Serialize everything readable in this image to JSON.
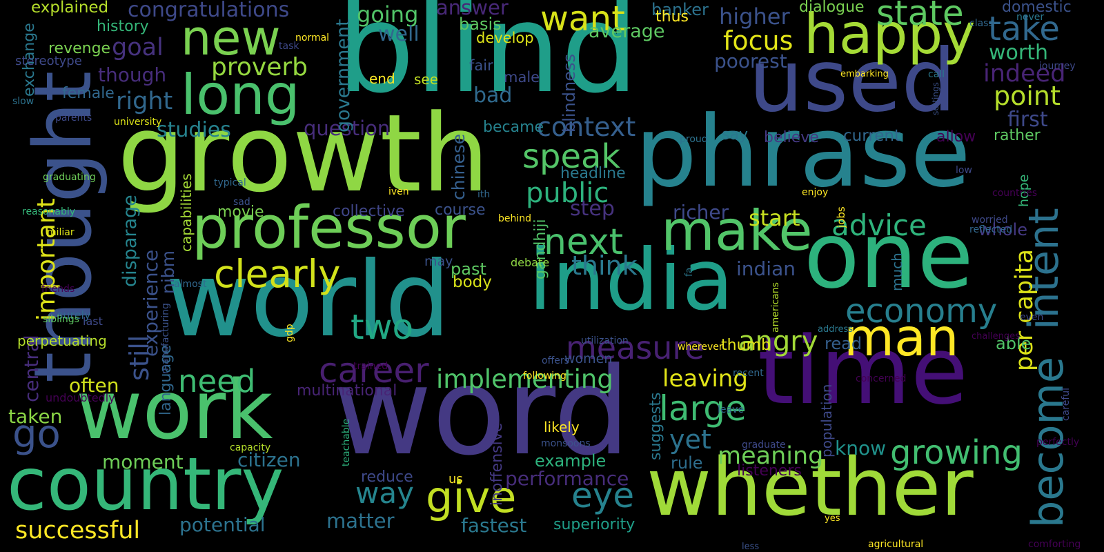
{
  "palette": {
    "background": "#000000",
    "viridis": [
      "#440154",
      "#482878",
      "#3e4989",
      "#31688e",
      "#26828e",
      "#1f9e89",
      "#35b779",
      "#6ece58",
      "#b5de2b",
      "#fde725"
    ]
  },
  "words": [
    {
      "text": "blind",
      "color": "#1f9e89"
    },
    {
      "text": "growth",
      "color": "#8fd744"
    },
    {
      "text": "world",
      "color": "#21918c"
    },
    {
      "text": "word",
      "color": "#443983"
    },
    {
      "text": "india",
      "color": "#1f9e89"
    },
    {
      "text": "one",
      "color": "#2db27d"
    },
    {
      "text": "phrase",
      "color": "#26828e"
    },
    {
      "text": "used",
      "color": "#3e4989"
    },
    {
      "text": "time",
      "color": "#440f76"
    },
    {
      "text": "work",
      "color": "#4ac16d"
    },
    {
      "text": "country",
      "color": "#35b779"
    },
    {
      "text": "whether",
      "color": "#a0da39"
    },
    {
      "text": "thought",
      "color": "#3b528b"
    },
    {
      "text": "professor",
      "color": "#6ece58"
    },
    {
      "text": "man",
      "color": "#fde725"
    },
    {
      "text": "happy",
      "color": "#a5db36"
    },
    {
      "text": "long",
      "color": "#4ac16d"
    },
    {
      "text": "new",
      "color": "#7ad151"
    },
    {
      "text": "make",
      "color": "#52c569"
    },
    {
      "text": "become",
      "color": "#2a788e"
    },
    {
      "text": "intent",
      "color": "#2c728e"
    },
    {
      "text": "clearly",
      "color": "#d2e21b"
    },
    {
      "text": "go",
      "color": "#3b528b"
    },
    {
      "text": "give",
      "color": "#c2df23"
    },
    {
      "text": "state",
      "color": "#5ec962"
    },
    {
      "text": "want",
      "color": "#d8e219"
    },
    {
      "text": "take",
      "color": "#31688e"
    },
    {
      "text": "next",
      "color": "#4ac16d"
    },
    {
      "text": "two",
      "color": "#22a884"
    },
    {
      "text": "economy",
      "color": "#277f8e"
    },
    {
      "text": "large",
      "color": "#3fbc73"
    },
    {
      "text": "career",
      "color": "#481f70"
    },
    {
      "text": "growing",
      "color": "#42be71"
    },
    {
      "text": "need",
      "color": "#3fbc73"
    },
    {
      "text": "eye",
      "color": "#26828e"
    },
    {
      "text": "measure",
      "color": "#482173"
    },
    {
      "text": "implementing",
      "color": "#50c46a"
    },
    {
      "text": "speak",
      "color": "#54c568"
    },
    {
      "text": "advice",
      "color": "#2fb47c"
    },
    {
      "text": "context",
      "color": "#355f8d"
    },
    {
      "text": "think",
      "color": "#2a788e"
    },
    {
      "text": "public",
      "color": "#2db27d"
    },
    {
      "text": "angry",
      "color": "#a2da37"
    },
    {
      "text": "way",
      "color": "#25858e"
    },
    {
      "text": "successful",
      "color": "#fde725"
    },
    {
      "text": "important",
      "color": "#dde318"
    },
    {
      "text": "proverb",
      "color": "#95d840"
    },
    {
      "text": "focus",
      "color": "#e2e418"
    },
    {
      "text": "point",
      "color": "#b5de2b"
    },
    {
      "text": "indeed",
      "color": "#482475"
    },
    {
      "text": "per capita",
      "color": "#dde318"
    },
    {
      "text": "meaning",
      "color": "#6ece58"
    },
    {
      "text": "leaving",
      "color": "#e2e418"
    },
    {
      "text": "still",
      "color": "#3b528b"
    },
    {
      "text": "yet",
      "color": "#2c728e"
    },
    {
      "text": "first",
      "color": "#3e4989"
    },
    {
      "text": "worth",
      "color": "#35b779"
    },
    {
      "text": "goal",
      "color": "#46327e"
    },
    {
      "text": "right",
      "color": "#31688e"
    },
    {
      "text": "going",
      "color": "#52c569"
    },
    {
      "text": "answer",
      "color": "#482878"
    },
    {
      "text": "higher",
      "color": "#3b528b"
    },
    {
      "text": "start",
      "color": "#c8e020"
    },
    {
      "text": "congratulations",
      "color": "#3e4989"
    },
    {
      "text": "well",
      "color": "#31688e"
    },
    {
      "text": "studies",
      "color": "#26828e"
    },
    {
      "text": "though",
      "color": "#472d7b"
    },
    {
      "text": "question",
      "color": "#472d7b"
    },
    {
      "text": "experience",
      "color": "#3b528b"
    },
    {
      "text": "disparage",
      "color": "#25848e"
    },
    {
      "text": "central",
      "color": "#472d7b"
    },
    {
      "text": "often",
      "color": "#d0e11c"
    },
    {
      "text": "taken",
      "color": "#8bd646"
    },
    {
      "text": "moment",
      "color": "#6ece58"
    },
    {
      "text": "matter",
      "color": "#2c728e"
    },
    {
      "text": "citizen",
      "color": "#2c728e"
    },
    {
      "text": "performance",
      "color": "#472d7b"
    },
    {
      "text": "potential",
      "color": "#2c728e"
    },
    {
      "text": "fastest",
      "color": "#2a788e"
    },
    {
      "text": "superiority",
      "color": "#1f9e89"
    },
    {
      "text": "past",
      "color": "#5ec962"
    },
    {
      "text": "body",
      "color": "#d8e219"
    },
    {
      "text": "step",
      "color": "#46327e"
    },
    {
      "text": "richer",
      "color": "#3e4989"
    },
    {
      "text": "bad",
      "color": "#306a8e"
    },
    {
      "text": "poorest",
      "color": "#3b528b"
    },
    {
      "text": "banker",
      "color": "#2c728e"
    },
    {
      "text": "average",
      "color": "#5ec962"
    },
    {
      "text": "dialogue",
      "color": "#7ad151"
    },
    {
      "text": "domestic",
      "color": "#3b528b"
    },
    {
      "text": "indian",
      "color": "#3b528b"
    },
    {
      "text": "know",
      "color": "#20928c"
    },
    {
      "text": "whole",
      "color": "#443983"
    },
    {
      "text": "read",
      "color": "#355f8d"
    },
    {
      "text": "able",
      "color": "#52c569"
    },
    {
      "text": "thumb",
      "color": "#e5e419"
    },
    {
      "text": "rule",
      "color": "#2e6e8e"
    },
    {
      "text": "example",
      "color": "#2db27d"
    },
    {
      "text": "listeners",
      "color": "#440154"
    },
    {
      "text": "reduce",
      "color": "#3e4989"
    },
    {
      "text": "multinational",
      "color": "#482475"
    },
    {
      "text": "collective",
      "color": "#404688"
    },
    {
      "text": "course",
      "color": "#3b528b"
    },
    {
      "text": "movie",
      "color": "#7ad151"
    },
    {
      "text": "language",
      "color": "#31688e"
    },
    {
      "text": "nibm",
      "color": "#3b528b"
    },
    {
      "text": "capabilities",
      "color": "#a5db36"
    },
    {
      "text": "chinese",
      "color": "#355f8d"
    },
    {
      "text": "government",
      "color": "#2a788e"
    },
    {
      "text": "blindness",
      "color": "#3b528b"
    },
    {
      "text": "gandhiji",
      "color": "#52c569"
    },
    {
      "text": "suggests",
      "color": "#2a788e"
    },
    {
      "text": "inoffensive",
      "color": "#443983"
    },
    {
      "text": "population",
      "color": "#3e4989"
    },
    {
      "text": "history",
      "color": "#35b779"
    },
    {
      "text": "revenge",
      "color": "#7ad151"
    },
    {
      "text": "explained",
      "color": "#b5de2b"
    },
    {
      "text": "exchange",
      "color": "#2a788e"
    },
    {
      "text": "stereotype",
      "color": "#3e4989"
    },
    {
      "text": "female",
      "color": "#31688e"
    },
    {
      "text": "develop",
      "color": "#dde318"
    },
    {
      "text": "basis",
      "color": "#5ec962"
    },
    {
      "text": "fair",
      "color": "#3b528b"
    },
    {
      "text": "male",
      "color": "#3e4989"
    },
    {
      "text": "see",
      "color": "#c2df23"
    },
    {
      "text": "end",
      "color": "#fde725"
    },
    {
      "text": "became",
      "color": "#26828e"
    },
    {
      "text": "headline",
      "color": "#2a788e"
    },
    {
      "text": "believe",
      "color": "#443983"
    },
    {
      "text": "current",
      "color": "#31688e"
    },
    {
      "text": "allow",
      "color": "#440154"
    },
    {
      "text": "rather",
      "color": "#5ec962"
    },
    {
      "text": "say",
      "color": "#2a788e"
    },
    {
      "text": "hope",
      "color": "#35b779"
    },
    {
      "text": "much",
      "color": "#2c728e"
    },
    {
      "text": "women",
      "color": "#3b528b"
    },
    {
      "text": "perpetuating",
      "color": "#b5de2b"
    },
    {
      "text": "surely",
      "color": "#31688e"
    },
    {
      "text": "last",
      "color": "#3e4989"
    },
    {
      "text": "undoubtedly",
      "color": "#440154"
    },
    {
      "text": "may",
      "color": "#3b528b"
    },
    {
      "text": "us",
      "color": "#fde725"
    },
    {
      "text": "likely",
      "color": "#fde725"
    },
    {
      "text": "debate",
      "color": "#8fd744"
    },
    {
      "text": "thus",
      "color": "#fde725"
    },
    {
      "text": "never",
      "color": "#2a788e"
    },
    {
      "text": "class",
      "color": "#31688e"
    },
    {
      "text": "journey",
      "color": "#3e4989"
    },
    {
      "text": "normal",
      "color": "#fde725"
    },
    {
      "text": "task",
      "color": "#3e4989"
    },
    {
      "text": "slow",
      "color": "#2c728e"
    },
    {
      "text": "parents",
      "color": "#3e4989"
    },
    {
      "text": "university",
      "color": "#dde318"
    },
    {
      "text": "graduating",
      "color": "#6ece58"
    },
    {
      "text": "typical",
      "color": "#31688e"
    },
    {
      "text": "sad",
      "color": "#3b528b"
    },
    {
      "text": "reasonably",
      "color": "#35b779"
    },
    {
      "text": "miliar",
      "color": "#dde318"
    },
    {
      "text": "friends",
      "color": "#440154"
    },
    {
      "text": "manufacturing",
      "color": "#3b528b"
    },
    {
      "text": "almost",
      "color": "#31688e"
    },
    {
      "text": "siblings",
      "color": "#5ec962"
    },
    {
      "text": "gdp",
      "color": "#fde725"
    },
    {
      "text": "iven",
      "color": "#fde725"
    },
    {
      "text": "ith",
      "color": "#31688e"
    },
    {
      "text": "behind",
      "color": "#fde725"
    },
    {
      "text": "fa",
      "color": "#2a788e"
    },
    {
      "text": "americans",
      "color": "#b5de2b"
    },
    {
      "text": "address",
      "color": "#2a788e"
    },
    {
      "text": "challenges",
      "color": "#440154"
    },
    {
      "text": "even",
      "color": "#3e4989"
    },
    {
      "text": "utilization",
      "color": "#3b528b"
    },
    {
      "text": "wherever",
      "color": "#fde725"
    },
    {
      "text": "offers",
      "color": "#3b528b"
    },
    {
      "text": "trained",
      "color": "#440154"
    },
    {
      "text": "following",
      "color": "#fde725"
    },
    {
      "text": "monsoons",
      "color": "#3b528b"
    },
    {
      "text": "capacity",
      "color": "#b5de2b"
    },
    {
      "text": "teachable",
      "color": "#2db27d"
    },
    {
      "text": "recent",
      "color": "#31688e"
    },
    {
      "text": "concerned",
      "color": "#440154"
    },
    {
      "text": "leave",
      "color": "#31688e"
    },
    {
      "text": "graduate",
      "color": "#3e4989"
    },
    {
      "text": "perfectly",
      "color": "#440154"
    },
    {
      "text": "careful",
      "color": "#3e4989"
    },
    {
      "text": "yes",
      "color": "#fde725"
    },
    {
      "text": "less",
      "color": "#3b528b"
    },
    {
      "text": "agricultural",
      "color": "#fde725"
    },
    {
      "text": "comforting",
      "color": "#440154"
    },
    {
      "text": "call",
      "color": "#2a788e"
    },
    {
      "text": "embarking",
      "color": "#fde725"
    },
    {
      "text": "settings",
      "color": "#3b528b"
    },
    {
      "text": "proud",
      "color": "#2c728e"
    },
    {
      "text": "enjoy",
      "color": "#fde725"
    },
    {
      "text": "low",
      "color": "#3e4989"
    },
    {
      "text": "countries",
      "color": "#440154"
    },
    {
      "text": "worried",
      "color": "#3e4989"
    },
    {
      "text": "reflected",
      "color": "#31688e"
    },
    {
      "text": "jobs",
      "color": "#fde725"
    }
  ]
}
